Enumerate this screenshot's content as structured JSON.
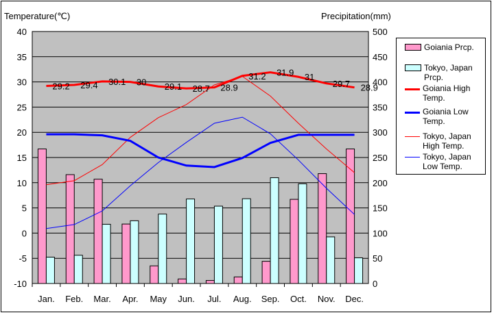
{
  "chart_data": {
    "type": "bar+line",
    "left_axis_label": "Temperature(℃)",
    "right_axis_label": "Precipitation(mm)",
    "left_ylim": [
      -10,
      40
    ],
    "left_ticks": [
      40,
      35,
      30,
      25,
      20,
      15,
      10,
      5,
      0,
      -5,
      -10
    ],
    "right_ylim": [
      0,
      500
    ],
    "right_ticks": [
      500,
      450,
      400,
      350,
      300,
      250,
      200,
      150,
      100,
      50,
      0
    ],
    "categories": [
      "Jan.",
      "Feb.",
      "Mar.",
      "Apr.",
      "May",
      "Jun.",
      "Jul.",
      "Aug.",
      "Sep.",
      "Oct.",
      "Nov.",
      "Dec."
    ],
    "bar_series": [
      {
        "name": "Goiania Prcp.",
        "color": "#ff99cc",
        "values": [
          267,
          216,
          207,
          118,
          35,
          9,
          6,
          13,
          44,
          167,
          218,
          267
        ]
      },
      {
        "name": "Tokyo, Japan Prcp.",
        "color": "#ccffff",
        "values": [
          52.3,
          56.1,
          117.5,
          124.5,
          137.8,
          167.7,
          153.5,
          168.2,
          209.9,
          197.8,
          92.5,
          51.0
        ]
      }
    ],
    "line_series": [
      {
        "name": "Goiania High Temp.",
        "color": "#ff0000",
        "width": 3,
        "values": [
          29.2,
          29.4,
          30.1,
          30,
          29.1,
          28.7,
          28.9,
          31.2,
          31.9,
          31,
          29.7,
          28.9
        ],
        "labels": [
          "29.2",
          "29.4",
          "30.1",
          "30",
          "29.1",
          "28.7",
          "28.9",
          "31.2",
          "31.9",
          "31",
          "29.7",
          "28.9"
        ]
      },
      {
        "name": "Goiania Low Temp.",
        "color": "#0000ff",
        "width": 3,
        "values": [
          19.6,
          19.6,
          19.4,
          18.3,
          15.0,
          13.4,
          13.1,
          14.9,
          17.9,
          19.5,
          19.5,
          19.5
        ]
      },
      {
        "name": "Tokyo, Japan High Temp.",
        "color": "#ff0000",
        "width": 1,
        "values": [
          9.6,
          10.4,
          13.6,
          19.0,
          22.9,
          25.5,
          29.4,
          31.1,
          27.2,
          21.8,
          16.7,
          12.0
        ]
      },
      {
        "name": "Tokyo, Japan Low Temp.",
        "color": "#0000ff",
        "width": 1,
        "values": [
          0.9,
          1.7,
          4.4,
          9.4,
          14.0,
          18.0,
          21.8,
          23.0,
          19.7,
          14.5,
          8.9,
          3.7
        ]
      }
    ],
    "grid": true,
    "legend_position": "right"
  }
}
